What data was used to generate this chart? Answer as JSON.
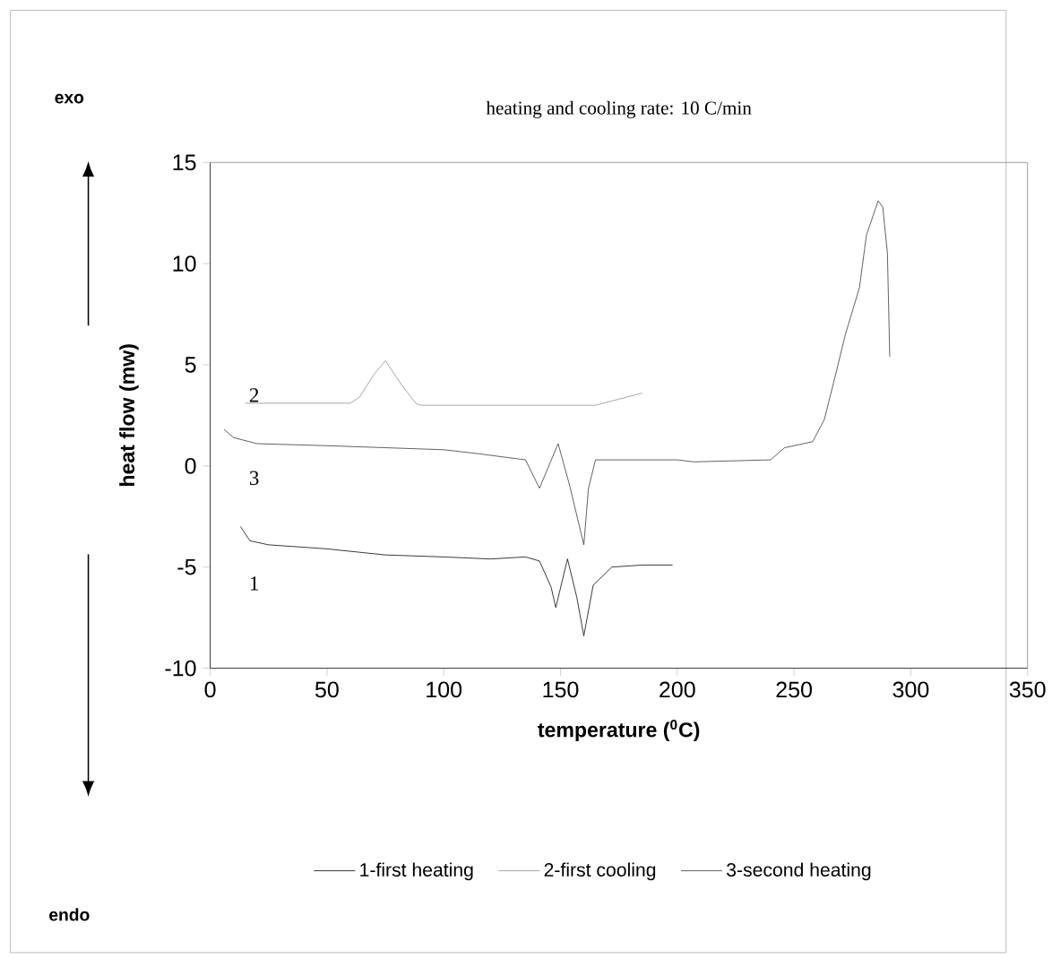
{
  "chart_data": {
    "type": "line",
    "title": "heating and cooling rate: 10 C/min",
    "xlabel": "temperature ($^{0}$C)",
    "ylabel": "heat flow (mw)",
    "xlim": [
      0,
      350
    ],
    "ylim": [
      -10,
      15
    ],
    "xticks": [
      0,
      50,
      100,
      150,
      200,
      250,
      300,
      350
    ],
    "yticks": [
      -10,
      -5,
      0,
      5,
      10,
      15
    ],
    "grid": false,
    "legend": "bottom",
    "marker": "none",
    "line_style": "solid",
    "series": [
      {
        "name": "1-first heating",
        "color": "#000000",
        "x": [
          13,
          17,
          25,
          50,
          75,
          100,
          120,
          135,
          141,
          146,
          148,
          153,
          157,
          160,
          164,
          172,
          185,
          198
        ],
        "values": [
          -3.0,
          -3.7,
          -3.9,
          -4.1,
          -4.4,
          -4.5,
          -4.6,
          -4.5,
          -4.7,
          -6.0,
          -7.0,
          -4.6,
          -6.5,
          -8.4,
          -5.9,
          -5.0,
          -4.9,
          -4.9
        ]
      },
      {
        "name": "2-first cooling",
        "color": "#8c8c8c",
        "x": [
          15,
          60,
          64,
          70,
          75,
          82,
          88,
          90,
          165,
          175,
          185
        ],
        "values": [
          3.1,
          3.1,
          3.4,
          4.5,
          5.2,
          4.0,
          3.1,
          3.0,
          3.0,
          3.3,
          3.6
        ]
      },
      {
        "name": "3-second heating",
        "color": "#333333",
        "x": [
          6,
          10,
          20,
          50,
          75,
          100,
          115,
          135,
          141,
          149,
          154,
          160,
          162,
          165,
          200,
          207,
          240,
          246,
          258,
          263,
          268,
          272,
          278,
          281,
          286,
          288,
          290,
          291
        ],
        "values": [
          1.8,
          1.4,
          1.1,
          1.0,
          0.9,
          0.8,
          0.6,
          0.3,
          -1.1,
          1.1,
          -1.0,
          -3.9,
          -1.1,
          0.3,
          0.3,
          0.2,
          0.3,
          0.9,
          1.2,
          2.3,
          4.6,
          6.5,
          8.8,
          11.4,
          13.1,
          12.8,
          10.5,
          5.4
        ]
      }
    ],
    "annotations": [
      "exo",
      "2",
      "3",
      "1",
      "endo"
    ]
  }
}
